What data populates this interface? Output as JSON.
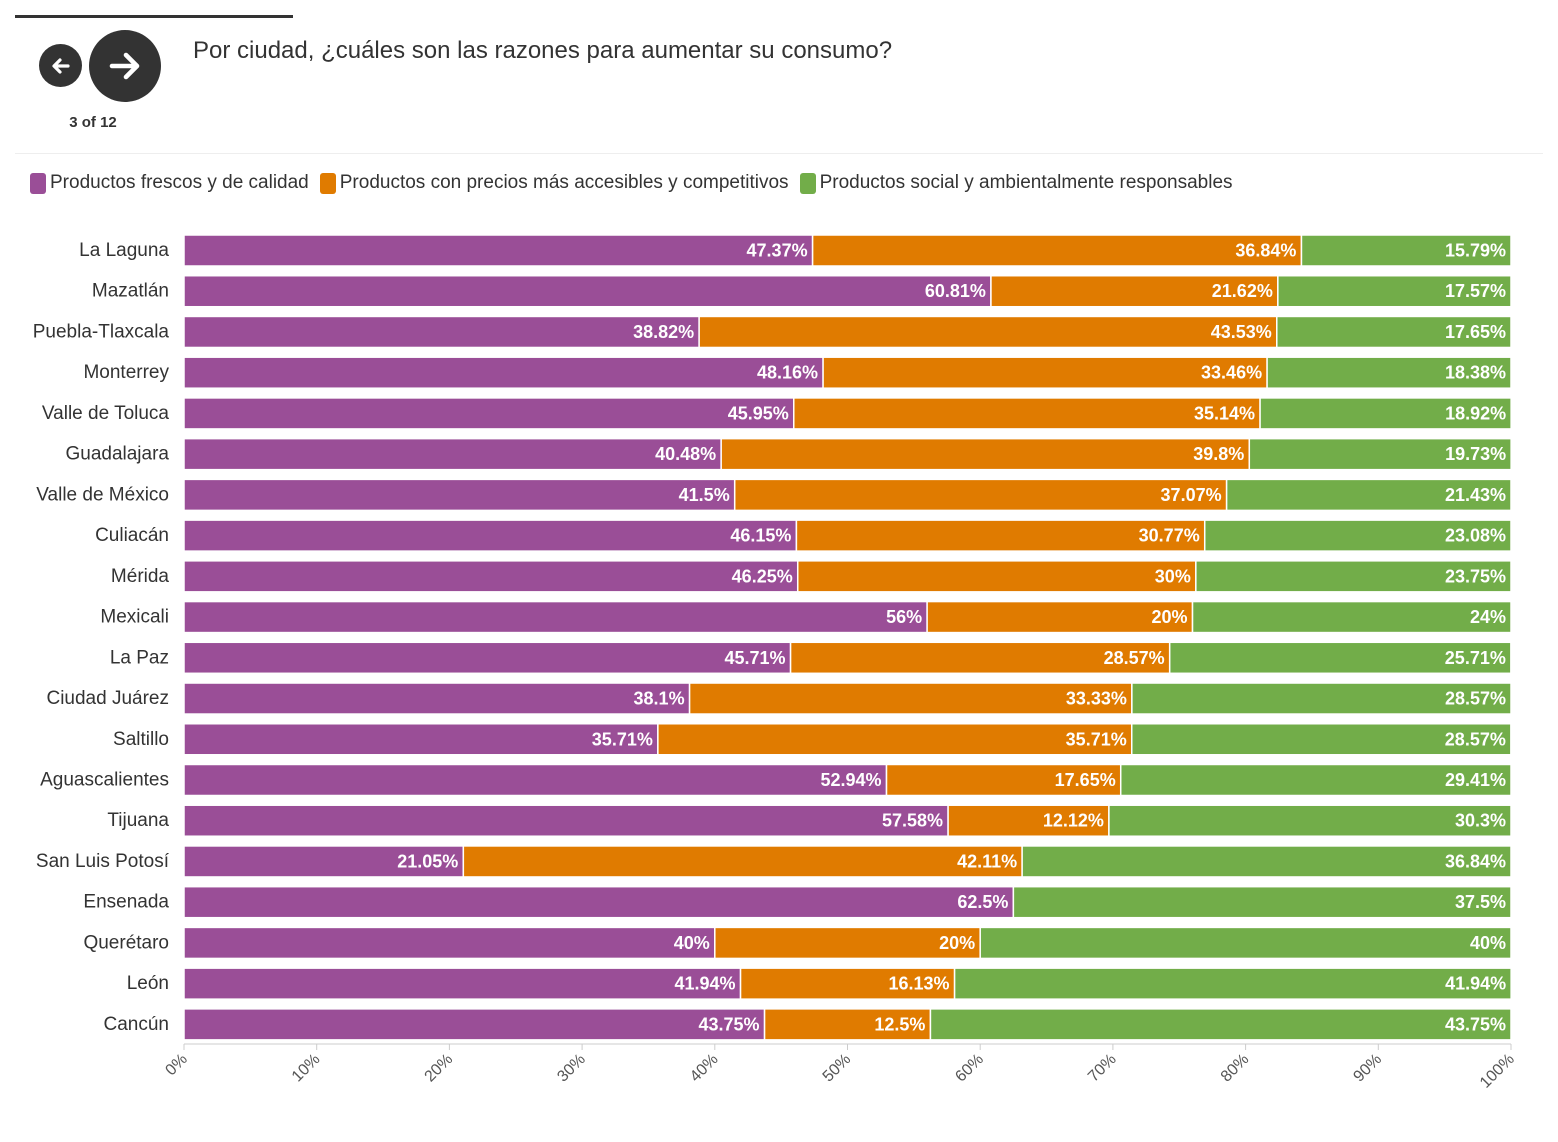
{
  "nav": {
    "counter": "3 of 12",
    "prev_icon": "arrow-left-icon",
    "next_icon": "arrow-right-icon"
  },
  "title": "Por ciudad, ¿cuáles son las razones para aumentar su consumo?",
  "legend": [
    {
      "label": "Productos frescos y de calidad",
      "color": "#9a4e97"
    },
    {
      "label": "Productos con precios más accesibles y competitivos",
      "color": "#e07b00"
    },
    {
      "label": "Productos social y ambientalmente responsables",
      "color": "#72ad49"
    }
  ],
  "chart_data": {
    "type": "bar",
    "orientation": "horizontal",
    "stacked": true,
    "categories": [
      "La Laguna",
      "Mazatlán",
      "Puebla-Tlaxcala",
      "Monterrey",
      "Valle de Toluca",
      "Guadalajara",
      "Valle de México",
      "Culiacán",
      "Mérida",
      "Mexicali",
      "La Paz",
      "Ciudad Juárez",
      "Saltillo",
      "Aguascalientes",
      "Tijuana",
      "San Luis Potosí",
      "Ensenada",
      "Querétaro",
      "León",
      "Cancún"
    ],
    "series": [
      {
        "name": "Productos frescos y de calidad",
        "color": "#9a4e97",
        "values": [
          47.37,
          60.81,
          38.82,
          48.16,
          45.95,
          40.48,
          41.5,
          46.15,
          46.25,
          56,
          45.71,
          38.1,
          35.71,
          52.94,
          57.58,
          21.05,
          62.5,
          40,
          41.94,
          43.75
        ]
      },
      {
        "name": "Productos con precios más accesibles y competitivos",
        "color": "#e07b00",
        "values": [
          36.84,
          21.62,
          43.53,
          33.46,
          35.14,
          39.8,
          37.07,
          30.77,
          30,
          20,
          28.57,
          33.33,
          35.71,
          17.65,
          12.12,
          42.11,
          0,
          20,
          16.13,
          12.5
        ]
      },
      {
        "name": "Productos social y ambientalmente responsables",
        "color": "#72ad49",
        "values": [
          15.79,
          17.57,
          17.65,
          18.38,
          18.92,
          19.73,
          21.43,
          23.08,
          23.75,
          24,
          25.71,
          28.57,
          28.57,
          29.41,
          30.3,
          36.84,
          37.5,
          40,
          41.94,
          43.75
        ]
      }
    ],
    "x_ticks": [
      "0%",
      "10%",
      "20%",
      "30%",
      "40%",
      "50%",
      "60%",
      "70%",
      "80%",
      "90%",
      "100%"
    ],
    "xlim": [
      0,
      100
    ],
    "value_suffix": "%",
    "legend_position": "top-left"
  }
}
